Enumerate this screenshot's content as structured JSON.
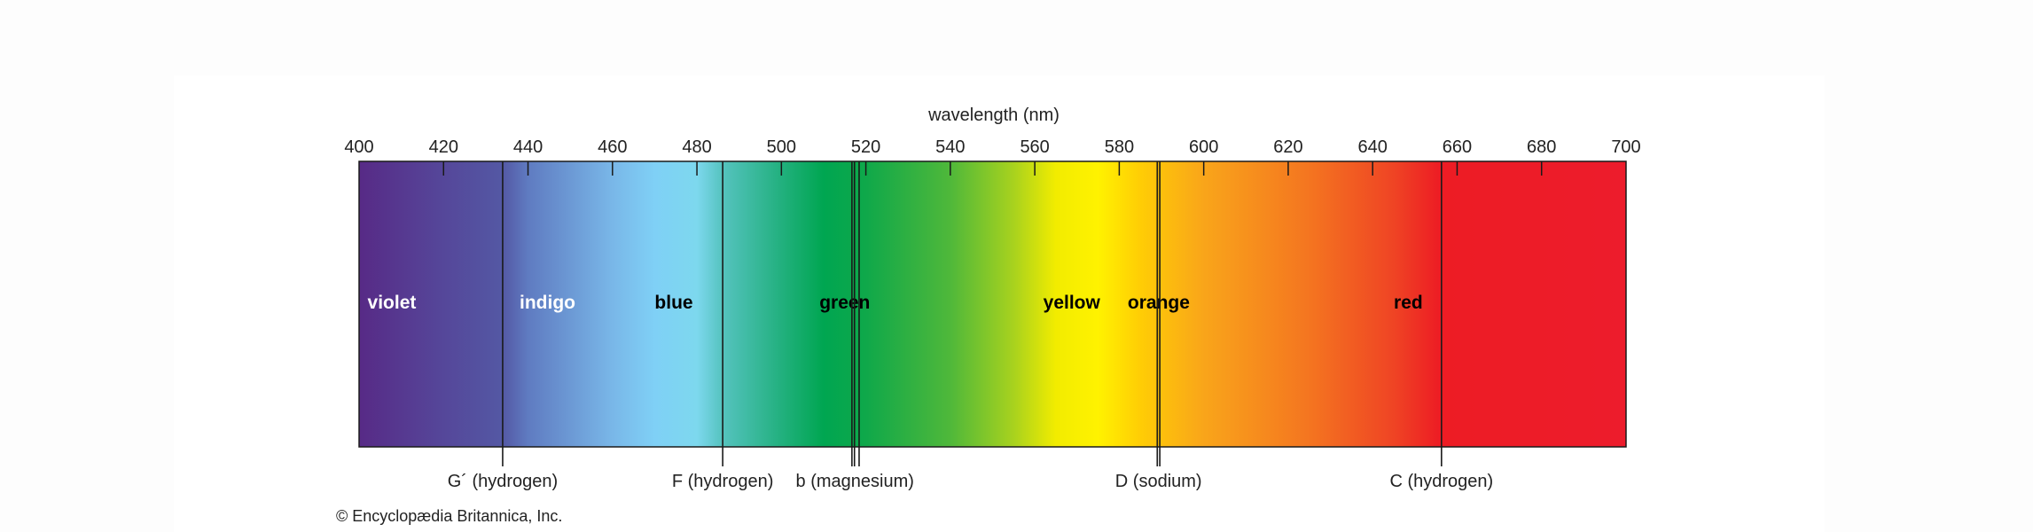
{
  "axis_title": "wavelength (nm)",
  "axis": {
    "min": 400,
    "max": 700,
    "step": 20
  },
  "tick_labels": [
    "400",
    "420",
    "440",
    "460",
    "480",
    "500",
    "520",
    "540",
    "560",
    "580",
    "600",
    "620",
    "640",
    "660",
    "680",
    "700"
  ],
  "color_bands": [
    {
      "name": "violet",
      "label_at": 402,
      "label_color": "#ffffff"
    },
    {
      "name": "indigo",
      "label_at": 438,
      "label_color": "#ffffff"
    },
    {
      "name": "blue",
      "label_at": 470,
      "label_color": "#000000"
    },
    {
      "name": "green",
      "label_at": 509,
      "label_color": "#000000"
    },
    {
      "name": "yellow",
      "label_at": 562,
      "label_color": "#000000"
    },
    {
      "name": "orange",
      "label_at": 582,
      "label_color": "#000000"
    },
    {
      "name": "red",
      "label_at": 645,
      "label_color": "#000000"
    }
  ],
  "spectrum_colors": [
    {
      "nm": 400,
      "color": "#572a86"
    },
    {
      "nm": 420,
      "color": "#55479a"
    },
    {
      "nm": 434,
      "color": "#5458a4"
    },
    {
      "nm": 440,
      "color": "#5f7bc1"
    },
    {
      "nm": 460,
      "color": "#79b7e8"
    },
    {
      "nm": 470,
      "color": "#7fd0f6"
    },
    {
      "nm": 480,
      "color": "#7dd8ee"
    },
    {
      "nm": 486,
      "color": "#55c3bf"
    },
    {
      "nm": 500,
      "color": "#22b07e"
    },
    {
      "nm": 510,
      "color": "#00a651"
    },
    {
      "nm": 520,
      "color": "#0fa84a"
    },
    {
      "nm": 540,
      "color": "#4fb83a"
    },
    {
      "nm": 555,
      "color": "#a8d21e"
    },
    {
      "nm": 565,
      "color": "#f2ec00"
    },
    {
      "nm": 575,
      "color": "#fff200"
    },
    {
      "nm": 585,
      "color": "#ffcd05"
    },
    {
      "nm": 600,
      "color": "#f9a51a"
    },
    {
      "nm": 625,
      "color": "#f47520"
    },
    {
      "nm": 645,
      "color": "#ef4424"
    },
    {
      "nm": 656,
      "color": "#ed1c24"
    },
    {
      "nm": 700,
      "color": "#ed1c2c"
    }
  ],
  "fraunhofer_lines": [
    {
      "label": "G´ (hydrogen)",
      "lines": [
        434.0
      ],
      "label_at": 434.0
    },
    {
      "label": "F (hydrogen)",
      "lines": [
        486.1
      ],
      "label_at": 486.1
    },
    {
      "label": "b (magnesium)",
      "lines": [
        516.7,
        517.3,
        518.4
      ],
      "label_at": 517.4
    },
    {
      "label": "D (sodium)",
      "lines": [
        589.0,
        589.6
      ],
      "label_at": 589.3
    },
    {
      "label": "C (hydrogen)",
      "lines": [
        656.3
      ],
      "label_at": 656.3
    }
  ],
  "credit": "© Encyclopædia Britannica, Inc."
}
